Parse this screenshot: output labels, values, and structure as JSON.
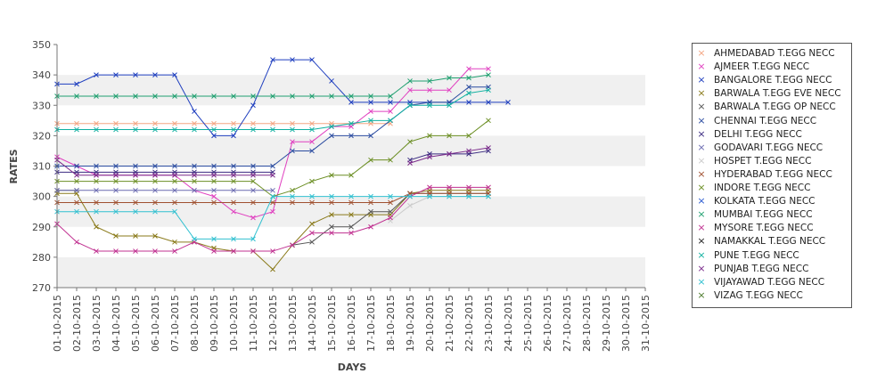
{
  "chart_data": {
    "type": "line",
    "title": "",
    "xlabel": "DAYS",
    "ylabel": "RATES",
    "ylim": [
      270,
      350
    ],
    "yticks": [
      270,
      280,
      290,
      300,
      310,
      320,
      330,
      340,
      350
    ],
    "grid": "alternating horizontal bands",
    "legend_position": "right",
    "x": [
      "01-10-2015",
      "02-10-2015",
      "03-10-2015",
      "04-10-2015",
      "05-10-2015",
      "06-10-2015",
      "07-10-2015",
      "08-10-2015",
      "09-10-2015",
      "10-10-2015",
      "11-10-2015",
      "12-10-2015",
      "13-10-2015",
      "14-10-2015",
      "15-10-2015",
      "16-10-2015",
      "17-10-2015",
      "18-10-2015",
      "19-10-2015",
      "20-10-2015",
      "21-10-2015",
      "22-10-2015",
      "23-10-2015",
      "24-10-2015",
      "25-10-2015",
      "26-10-2015",
      "27-10-2015",
      "28-10-2015",
      "29-10-2015",
      "30-10-2015",
      "31-10-2015"
    ],
    "series": [
      {
        "name": "AHMEDABAD T.EGG NECC",
        "color": "#f4a582",
        "values": [
          324,
          324,
          324,
          324,
          324,
          324,
          324,
          324,
          324,
          324,
          324,
          324,
          324,
          324,
          324,
          324,
          324,
          324,
          null,
          null,
          null,
          null,
          null,
          null,
          null,
          null,
          null,
          null,
          null,
          null,
          null
        ]
      },
      {
        "name": "AJMEER T.EGG NECC",
        "color": "#e040c0",
        "values": [
          313,
          310,
          307,
          307,
          307,
          307,
          307,
          302,
          300,
          295,
          293,
          295,
          318,
          318,
          323,
          323,
          328,
          328,
          335,
          335,
          335,
          342,
          342,
          null,
          null,
          null,
          null,
          null,
          null,
          null,
          null
        ]
      },
      {
        "name": "BANGALORE T.EGG NECC",
        "color": "#1f3fbf",
        "values": [
          337,
          337,
          340,
          340,
          340,
          340,
          340,
          328,
          320,
          320,
          330,
          345,
          345,
          345,
          338,
          331,
          331,
          331,
          331,
          331,
          331,
          331,
          331,
          331,
          null,
          null,
          null,
          null,
          null,
          null,
          null
        ]
      },
      {
        "name": "BARWALA T.EGG EVE NECC",
        "color": "#8a7a1a",
        "values": [
          301,
          301,
          290,
          287,
          287,
          287,
          285,
          285,
          283,
          282,
          282,
          276,
          284,
          291,
          294,
          294,
          294,
          294,
          301,
          302,
          302,
          302,
          302,
          null,
          null,
          null,
          null,
          null,
          null,
          null,
          null
        ]
      },
      {
        "name": "BARWALA T.EGG OP NECC",
        "color": "#555555",
        "values": [
          302,
          302,
          null,
          null,
          null,
          null,
          null,
          null,
          null,
          null,
          null,
          null,
          284,
          285,
          290,
          290,
          295,
          295,
          301,
          301,
          301,
          301,
          301,
          null,
          null,
          null,
          null,
          null,
          null,
          null,
          null
        ]
      },
      {
        "name": "CHENNAI T.EGG NECC",
        "color": "#2b4ca0",
        "values": [
          310,
          310,
          310,
          310,
          310,
          310,
          310,
          310,
          310,
          310,
          310,
          310,
          315,
          315,
          320,
          320,
          320,
          325,
          330,
          331,
          331,
          336,
          336,
          null,
          null,
          null,
          null,
          null,
          null,
          null,
          null
        ]
      },
      {
        "name": "DELHI T.EGG NECC",
        "color": "#3a2a80",
        "values": [
          308,
          308,
          308,
          308,
          308,
          308,
          308,
          308,
          308,
          308,
          308,
          308,
          null,
          null,
          null,
          null,
          null,
          null,
          312,
          314,
          314,
          314,
          315,
          null,
          null,
          null,
          null,
          null,
          null,
          null,
          null
        ]
      },
      {
        "name": "GODAVARI T.EGG NECC",
        "color": "#6a6ab0",
        "values": [
          302,
          302,
          302,
          302,
          302,
          302,
          302,
          302,
          302,
          302,
          302,
          302,
          null,
          null,
          null,
          null,
          null,
          null,
          null,
          null,
          null,
          null,
          null,
          null,
          null,
          null,
          null,
          null,
          null,
          null,
          null
        ]
      },
      {
        "name": "HOSPET T.EGG NECC",
        "color": "#cccccc",
        "values": [
          null,
          null,
          null,
          null,
          null,
          null,
          null,
          null,
          null,
          null,
          null,
          null,
          null,
          null,
          null,
          null,
          null,
          292,
          297,
          300,
          300,
          300,
          300,
          null,
          null,
          null,
          null,
          null,
          null,
          null,
          null
        ]
      },
      {
        "name": "HYDERABAD T.EGG NECC",
        "color": "#a05030",
        "values": [
          298,
          298,
          298,
          298,
          298,
          298,
          298,
          298,
          298,
          298,
          298,
          298,
          298,
          298,
          298,
          298,
          298,
          298,
          301,
          301,
          301,
          301,
          301,
          null,
          null,
          null,
          null,
          null,
          null,
          null,
          null
        ]
      },
      {
        "name": "INDORE T.EGG NECC",
        "color": "#6b8e23",
        "values": [
          305,
          305,
          305,
          305,
          305,
          305,
          305,
          305,
          305,
          305,
          305,
          300,
          302,
          305,
          307,
          307,
          312,
          312,
          318,
          320,
          320,
          320,
          325,
          null,
          null,
          null,
          null,
          null,
          null,
          null,
          null
        ]
      },
      {
        "name": "KOLKATA T.EGG NECC",
        "color": "#2a5ad0",
        "values": [
          null,
          null,
          null,
          null,
          null,
          null,
          null,
          null,
          null,
          null,
          null,
          null,
          null,
          null,
          null,
          null,
          null,
          null,
          null,
          null,
          null,
          null,
          null,
          null,
          null,
          null,
          null,
          null,
          null,
          null,
          null
        ]
      },
      {
        "name": "MUMBAI T.EGG NECC",
        "color": "#20a070",
        "values": [
          333,
          333,
          333,
          333,
          333,
          333,
          333,
          333,
          333,
          333,
          333,
          333,
          333,
          333,
          333,
          333,
          333,
          333,
          338,
          338,
          339,
          339,
          340,
          null,
          null,
          null,
          null,
          null,
          null,
          null,
          null
        ]
      },
      {
        "name": "MYSORE T.EGG NECC",
        "color": "#c03090",
        "values": [
          291,
          285,
          282,
          282,
          282,
          282,
          282,
          285,
          282,
          282,
          282,
          282,
          284,
          288,
          288,
          288,
          290,
          293,
          300,
          303,
          303,
          303,
          303,
          null,
          null,
          null,
          null,
          null,
          null,
          null,
          null
        ]
      },
      {
        "name": "NAMAKKAL T.EGG NECC",
        "color": "#202020",
        "values": [
          null,
          null,
          null,
          null,
          null,
          null,
          null,
          null,
          null,
          null,
          null,
          null,
          null,
          null,
          null,
          null,
          null,
          null,
          null,
          null,
          null,
          null,
          null,
          null,
          null,
          null,
          null,
          null,
          null,
          null,
          null
        ]
      },
      {
        "name": "PUNE T.EGG NECC",
        "color": "#10b0a0",
        "values": [
          322,
          322,
          322,
          322,
          322,
          322,
          322,
          322,
          322,
          322,
          322,
          322,
          322,
          322,
          323,
          324,
          325,
          325,
          330,
          330,
          330,
          334,
          335,
          null,
          null,
          null,
          null,
          null,
          null,
          null,
          null
        ]
      },
      {
        "name": "PUNJAB T.EGG NECC",
        "color": "#7a2a8a",
        "values": [
          312,
          307,
          307,
          307,
          307,
          307,
          307,
          307,
          307,
          307,
          307,
          307,
          null,
          null,
          null,
          null,
          null,
          null,
          311,
          313,
          314,
          315,
          316,
          null,
          null,
          null,
          null,
          null,
          null,
          null,
          null
        ]
      },
      {
        "name": "VIJAYAWAD T.EGG NECC",
        "color": "#30c0d0",
        "values": [
          295,
          295,
          295,
          295,
          295,
          295,
          295,
          286,
          286,
          286,
          286,
          300,
          300,
          300,
          300,
          300,
          300,
          300,
          300,
          300,
          300,
          300,
          300,
          null,
          null,
          null,
          null,
          null,
          null,
          null,
          null
        ]
      },
      {
        "name": "VIZAG T.EGG NECC",
        "color": "#4a7a2a",
        "values": [
          null,
          null,
          null,
          null,
          null,
          null,
          null,
          null,
          null,
          null,
          null,
          null,
          null,
          null,
          null,
          null,
          null,
          null,
          null,
          null,
          null,
          null,
          null,
          null,
          null,
          null,
          null,
          null,
          null,
          null,
          null
        ]
      }
    ]
  }
}
